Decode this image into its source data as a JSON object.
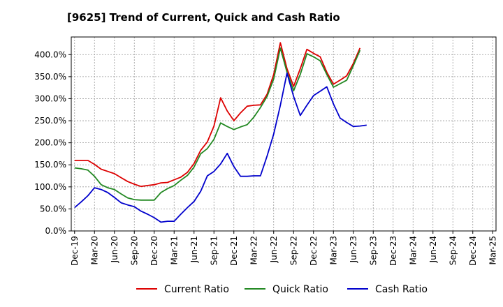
{
  "chart_data": {
    "type": "line",
    "title": "[9625]  Trend of Current, Quick and Cash Ratio",
    "xlabel": "",
    "ylabel": "",
    "ylim": [
      0,
      440
    ],
    "y_ticks": [
      "0.0%",
      "50.0%",
      "100.0%",
      "150.0%",
      "200.0%",
      "250.0%",
      "300.0%",
      "350.0%",
      "400.0%"
    ],
    "x_ticks": [
      "Dec-19",
      "Mar-20",
      "Jun-20",
      "Sep-20",
      "Dec-20",
      "Mar-21",
      "Jun-21",
      "Sep-21",
      "Dec-21",
      "Mar-22",
      "Jun-22",
      "Sep-22",
      "Dec-22",
      "Mar-23",
      "Jun-23",
      "Sep-23",
      "Dec-23",
      "Mar-24",
      "Jun-24",
      "Sep-24",
      "Dec-24",
      "Mar-25"
    ],
    "grid": true,
    "legend_position": "bottom",
    "series": [
      {
        "name": "Current Ratio",
        "color": "#dd0000",
        "points": [
          [
            0,
            160
          ],
          [
            1,
            160
          ],
          [
            2,
            160
          ],
          [
            3,
            151
          ],
          [
            4,
            140
          ],
          [
            5,
            135
          ],
          [
            6,
            130
          ],
          [
            7,
            121
          ],
          [
            8,
            112
          ],
          [
            9,
            106
          ],
          [
            10,
            101
          ],
          [
            11,
            103
          ],
          [
            12,
            105
          ],
          [
            13,
            109
          ],
          [
            14,
            110
          ],
          [
            15,
            116
          ],
          [
            16,
            122
          ],
          [
            17,
            133
          ],
          [
            18,
            153
          ],
          [
            19,
            183
          ],
          [
            20,
            202
          ],
          [
            21,
            238
          ],
          [
            22,
            302
          ],
          [
            23,
            272
          ],
          [
            24,
            250
          ],
          [
            25,
            268
          ],
          [
            26,
            283
          ],
          [
            27,
            285
          ],
          [
            28,
            286
          ],
          [
            29,
            310
          ],
          [
            30,
            355
          ],
          [
            31,
            427
          ],
          [
            32,
            368
          ],
          [
            33,
            328
          ],
          [
            34,
            368
          ],
          [
            35,
            412
          ],
          [
            36,
            403
          ],
          [
            37,
            395
          ],
          [
            38,
            360
          ],
          [
            39,
            333
          ],
          [
            40,
            342
          ],
          [
            41,
            352
          ],
          [
            42,
            380
          ],
          [
            43,
            415
          ]
        ]
      },
      {
        "name": "Quick Ratio",
        "color": "#228822",
        "points": [
          [
            0,
            143
          ],
          [
            1,
            141
          ],
          [
            2,
            138
          ],
          [
            3,
            124
          ],
          [
            4,
            105
          ],
          [
            5,
            98
          ],
          [
            6,
            94
          ],
          [
            7,
            84
          ],
          [
            8,
            75
          ],
          [
            9,
            71
          ],
          [
            10,
            70
          ],
          [
            11,
            70
          ],
          [
            12,
            70
          ],
          [
            13,
            87
          ],
          [
            14,
            96
          ],
          [
            15,
            103
          ],
          [
            16,
            115
          ],
          [
            17,
            126
          ],
          [
            18,
            145
          ],
          [
            19,
            175
          ],
          [
            20,
            187
          ],
          [
            21,
            208
          ],
          [
            22,
            245
          ],
          [
            23,
            237
          ],
          [
            24,
            230
          ],
          [
            25,
            236
          ],
          [
            26,
            241
          ],
          [
            27,
            258
          ],
          [
            28,
            280
          ],
          [
            29,
            305
          ],
          [
            30,
            345
          ],
          [
            31,
            415
          ],
          [
            32,
            360
          ],
          [
            33,
            318
          ],
          [
            34,
            355
          ],
          [
            35,
            402
          ],
          [
            36,
            395
          ],
          [
            37,
            386
          ],
          [
            38,
            355
          ],
          [
            39,
            326
          ],
          [
            40,
            334
          ],
          [
            41,
            342
          ],
          [
            42,
            375
          ],
          [
            43,
            410
          ]
        ]
      },
      {
        "name": "Cash Ratio",
        "color": "#0000cc",
        "points": [
          [
            0,
            53
          ],
          [
            1,
            66
          ],
          [
            2,
            80
          ],
          [
            3,
            98
          ],
          [
            4,
            94
          ],
          [
            5,
            87
          ],
          [
            6,
            76
          ],
          [
            7,
            64
          ],
          [
            8,
            59
          ],
          [
            9,
            55
          ],
          [
            10,
            45
          ],
          [
            11,
            38
          ],
          [
            12,
            30
          ],
          [
            13,
            20
          ],
          [
            14,
            22
          ],
          [
            15,
            22
          ],
          [
            16,
            38
          ],
          [
            17,
            53
          ],
          [
            18,
            67
          ],
          [
            19,
            90
          ],
          [
            20,
            125
          ],
          [
            21,
            135
          ],
          [
            22,
            152
          ],
          [
            23,
            176
          ],
          [
            24,
            146
          ],
          [
            25,
            124
          ],
          [
            26,
            124
          ],
          [
            27,
            125
          ],
          [
            28,
            125
          ],
          [
            29,
            170
          ],
          [
            30,
            220
          ],
          [
            31,
            285
          ],
          [
            32,
            358
          ],
          [
            33,
            305
          ],
          [
            34,
            262
          ],
          [
            35,
            285
          ],
          [
            36,
            307
          ],
          [
            37,
            317
          ],
          [
            38,
            327
          ],
          [
            39,
            288
          ],
          [
            40,
            256
          ],
          [
            41,
            246
          ],
          [
            42,
            237
          ],
          [
            43,
            238
          ],
          [
            44,
            240
          ]
        ]
      }
    ]
  }
}
